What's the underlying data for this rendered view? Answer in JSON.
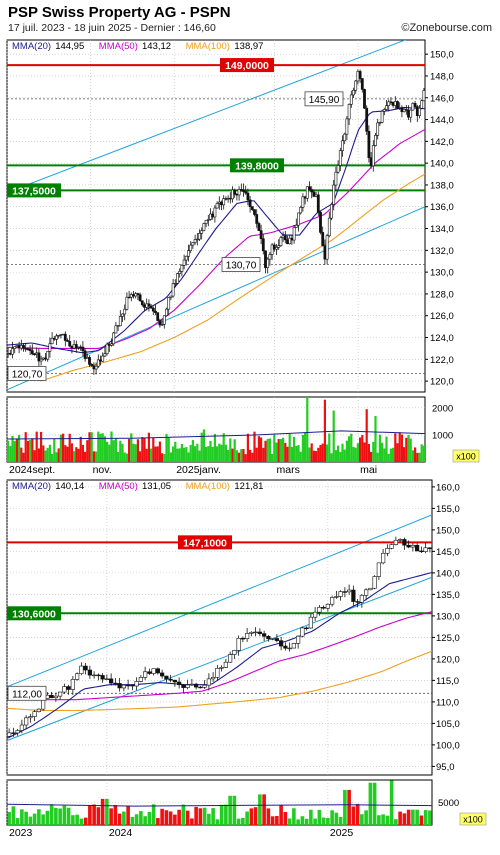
{
  "header": {
    "title": "PSP Swiss Property AG - PSPN",
    "subtitle": "17 juil. 2023 - 18 juin 2025 - Dernier : 146,60",
    "brand": "©Zonebourse.com"
  },
  "colors": {
    "candle": "#111111",
    "ma20": "#1d1d8f",
    "ma50": "#cc00cc",
    "ma100": "#f0a020",
    "channel": "#1fa4e0",
    "resistance": "#e00000",
    "support": "#008000",
    "vol_up": "#22cc22",
    "vol_down": "#ee1111",
    "vol_avg": "#1d1d8f",
    "grid": "#bbbbbb",
    "text": "#000000"
  },
  "chart_data": [
    {
      "id": "daily",
      "type": "candlestick",
      "ylim": [
        119,
        151.3
      ],
      "y_ticks": [
        "120,0",
        "122,0",
        "124,0",
        "126,0",
        "128,0",
        "130,0",
        "132,0",
        "134,0",
        "136,0",
        "138,0",
        "140,0",
        "142,0",
        "144,0",
        "146,0",
        "148,0",
        "150,0"
      ],
      "legend": [
        {
          "label": "MMA(20)",
          "value": "144,95",
          "color": "#1d1d8f"
        },
        {
          "label": "MMA(50)",
          "value": "143,12",
          "color": "#cc00cc"
        },
        {
          "label": "MMA(100)",
          "value": "138,97",
          "color": "#f0a020"
        }
      ],
      "levels": [
        {
          "value": 149.0,
          "label": "149,0000",
          "color": "#e00000",
          "style": "solid"
        },
        {
          "value": 139.8,
          "label": "139,8000",
          "color": "#008000",
          "style": "solid"
        },
        {
          "value": 137.5,
          "label": "137,5000",
          "color": "#008000",
          "style": "solid"
        },
        {
          "value": 145.9,
          "label": "145,90",
          "color": "#555555",
          "style": "dashed"
        },
        {
          "value": 130.7,
          "label": "130,70",
          "color": "#555555",
          "style": "dashed"
        },
        {
          "value": 120.7,
          "label": "120,70",
          "color": "#555555",
          "style": "dashed"
        }
      ],
      "channel": {
        "upper": [
          137.3,
          152.0
        ],
        "lower": [
          119.2,
          136.0
        ]
      },
      "x_labels": [
        "2024sept.",
        "nov.",
        "2025janv.",
        "mars",
        "mai"
      ],
      "x_label_pos": [
        0.0,
        0.2,
        0.4,
        0.64,
        0.84
      ],
      "anchors": [
        [
          0.0,
          122.5
        ],
        [
          0.03,
          123.4
        ],
        [
          0.06,
          122.6
        ],
        [
          0.09,
          121.8
        ],
        [
          0.11,
          124.0
        ],
        [
          0.13,
          124.6
        ],
        [
          0.15,
          123.5
        ],
        [
          0.17,
          123.0
        ],
        [
          0.19,
          122.2
        ],
        [
          0.21,
          121.3
        ],
        [
          0.23,
          122.6
        ],
        [
          0.25,
          123.8
        ],
        [
          0.27,
          125.8
        ],
        [
          0.29,
          127.6
        ],
        [
          0.31,
          128.0
        ],
        [
          0.33,
          126.9
        ],
        [
          0.35,
          126.4
        ],
        [
          0.37,
          125.3
        ],
        [
          0.39,
          127.8
        ],
        [
          0.41,
          130.0
        ],
        [
          0.43,
          131.5
        ],
        [
          0.45,
          133.0
        ],
        [
          0.47,
          134.2
        ],
        [
          0.49,
          135.2
        ],
        [
          0.51,
          136.4
        ],
        [
          0.53,
          137.0
        ],
        [
          0.55,
          137.4
        ],
        [
          0.57,
          137.0
        ],
        [
          0.59,
          135.5
        ],
        [
          0.61,
          132.8
        ],
        [
          0.62,
          130.2
        ],
        [
          0.63,
          132.0
        ],
        [
          0.66,
          133.0
        ],
        [
          0.68,
          132.8
        ],
        [
          0.7,
          135.8
        ],
        [
          0.72,
          137.8
        ],
        [
          0.74,
          136.8
        ],
        [
          0.75,
          134.0
        ],
        [
          0.76,
          131.0
        ],
        [
          0.77,
          135.0
        ],
        [
          0.79,
          139.5
        ],
        [
          0.81,
          143.0
        ],
        [
          0.82,
          145.5
        ],
        [
          0.83,
          147.0
        ],
        [
          0.84,
          148.6
        ],
        [
          0.85,
          147.0
        ],
        [
          0.86,
          143.0
        ],
        [
          0.87,
          139.2
        ],
        [
          0.88,
          142.5
        ],
        [
          0.9,
          145.0
        ],
        [
          0.92,
          145.8
        ],
        [
          0.94,
          145.0
        ],
        [
          0.96,
          144.5
        ],
        [
          0.97,
          145.6
        ],
        [
          0.98,
          144.5
        ],
        [
          1.0,
          146.6
        ]
      ],
      "ma20": [
        [
          0.0,
          123.3
        ],
        [
          0.06,
          123.5
        ],
        [
          0.12,
          123.0
        ],
        [
          0.18,
          122.6
        ],
        [
          0.22,
          122.8
        ],
        [
          0.28,
          124.6
        ],
        [
          0.33,
          126.5
        ],
        [
          0.38,
          127.6
        ],
        [
          0.42,
          129.5
        ],
        [
          0.46,
          131.8
        ],
        [
          0.5,
          134.0
        ],
        [
          0.55,
          136.3
        ],
        [
          0.59,
          136.6
        ],
        [
          0.62,
          135.2
        ],
        [
          0.66,
          133.4
        ],
        [
          0.7,
          133.4
        ],
        [
          0.74,
          135.4
        ],
        [
          0.78,
          136.3
        ],
        [
          0.81,
          139.5
        ],
        [
          0.84,
          143.0
        ],
        [
          0.87,
          144.7
        ],
        [
          0.91,
          144.8
        ],
        [
          0.95,
          145.1
        ],
        [
          1.0,
          145.0
        ]
      ],
      "ma50": [
        [
          0.0,
          123.1
        ],
        [
          0.08,
          123.0
        ],
        [
          0.15,
          123.0
        ],
        [
          0.22,
          123.0
        ],
        [
          0.28,
          123.8
        ],
        [
          0.34,
          124.8
        ],
        [
          0.4,
          126.5
        ],
        [
          0.46,
          128.8
        ],
        [
          0.52,
          131.3
        ],
        [
          0.58,
          133.3
        ],
        [
          0.63,
          133.6
        ],
        [
          0.7,
          134.4
        ],
        [
          0.76,
          135.3
        ],
        [
          0.82,
          137.5
        ],
        [
          0.88,
          140.0
        ],
        [
          0.94,
          141.8
        ],
        [
          1.0,
          143.1
        ]
      ],
      "ma100": [
        [
          0.08,
          120.0
        ],
        [
          0.16,
          121.0
        ],
        [
          0.24,
          121.8
        ],
        [
          0.32,
          122.7
        ],
        [
          0.4,
          124.0
        ],
        [
          0.48,
          125.6
        ],
        [
          0.56,
          127.7
        ],
        [
          0.64,
          129.7
        ],
        [
          0.72,
          131.6
        ],
        [
          0.78,
          133.0
        ],
        [
          0.84,
          134.8
        ],
        [
          0.9,
          136.6
        ],
        [
          0.96,
          138.1
        ],
        [
          1.0,
          139.0
        ]
      ],
      "volume": {
        "y_ticks": [
          "1000",
          "2000"
        ],
        "y_tick_values": [
          1000,
          2000
        ],
        "ymax": 2400,
        "multiplier_label": "x100",
        "avg": [
          [
            0.0,
            850
          ],
          [
            0.3,
            880
          ],
          [
            0.6,
            1000
          ],
          [
            0.8,
            1150
          ],
          [
            1.0,
            1050
          ]
        ],
        "spikes": [
          [
            0.72,
            2400
          ],
          [
            0.76,
            2300
          ],
          [
            0.78,
            1900
          ],
          [
            0.86,
            1950
          ],
          [
            0.88,
            1700
          ],
          [
            0.47,
            1200
          ],
          [
            0.2,
            1100
          ]
        ]
      }
    },
    {
      "id": "weekly",
      "type": "candlestick",
      "ylim": [
        93,
        161.6
      ],
      "y_ticks": [
        "95,0",
        "100,0",
        "105,0",
        "110,0",
        "115,0",
        "120,0",
        "125,0",
        "130,0",
        "135,0",
        "140,0",
        "145,0",
        "150,0",
        "155,0",
        "160,0"
      ],
      "legend": [
        {
          "label": "MMA(20)",
          "value": "140,14",
          "color": "#1d1d8f"
        },
        {
          "label": "MMA(50)",
          "value": "131,05",
          "color": "#cc00cc"
        },
        {
          "label": "MMA(100)",
          "value": "121,81",
          "color": "#f0a020"
        }
      ],
      "levels": [
        {
          "value": 147.1,
          "label": "147,1000",
          "color": "#e00000",
          "style": "solid"
        },
        {
          "value": 130.6,
          "label": "130,6000",
          "color": "#008000",
          "style": "solid"
        },
        {
          "value": 112.0,
          "label": "112,00",
          "color": "#555555",
          "style": "dashed"
        }
      ],
      "channel": {
        "upper": [
          113.5,
          153.5
        ],
        "lower": [
          101.0,
          139.0
        ]
      },
      "x_labels": [
        "2023",
        "2024",
        "2025"
      ],
      "x_label_pos": [
        0.0,
        0.235,
        0.755
      ],
      "anchors": [
        [
          0.0,
          102.0
        ],
        [
          0.03,
          104.5
        ],
        [
          0.06,
          107.5
        ],
        [
          0.09,
          110.5
        ],
        [
          0.12,
          112.0
        ],
        [
          0.15,
          114.0
        ],
        [
          0.18,
          118.5
        ],
        [
          0.2,
          116.0
        ],
        [
          0.22,
          115.5
        ],
        [
          0.25,
          114.5
        ],
        [
          0.28,
          113.5
        ],
        [
          0.31,
          115.0
        ],
        [
          0.34,
          117.5
        ],
        [
          0.37,
          115.5
        ],
        [
          0.4,
          114.0
        ],
        [
          0.43,
          113.5
        ],
        [
          0.46,
          112.5
        ],
        [
          0.48,
          116.0
        ],
        [
          0.51,
          119.0
        ],
        [
          0.54,
          123.5
        ],
        [
          0.57,
          126.5
        ],
        [
          0.6,
          125.0
        ],
        [
          0.63,
          124.0
        ],
        [
          0.66,
          122.0
        ],
        [
          0.69,
          126.0
        ],
        [
          0.72,
          130.0
        ],
        [
          0.75,
          132.5
        ],
        [
          0.78,
          135.5
        ],
        [
          0.8,
          136.5
        ],
        [
          0.82,
          133.0
        ],
        [
          0.84,
          134.5
        ],
        [
          0.86,
          138.0
        ],
        [
          0.88,
          143.0
        ],
        [
          0.9,
          146.0
        ],
        [
          0.92,
          147.5
        ],
        [
          0.94,
          145.5
        ],
        [
          0.96,
          146.0
        ],
        [
          0.98,
          145.5
        ],
        [
          1.0,
          146.6
        ]
      ],
      "ma20": [
        [
          0.0,
          101.5
        ],
        [
          0.06,
          104.5
        ],
        [
          0.12,
          108.5
        ],
        [
          0.18,
          113.0
        ],
        [
          0.24,
          114.0
        ],
        [
          0.3,
          114.0
        ],
        [
          0.36,
          114.5
        ],
        [
          0.42,
          114.0
        ],
        [
          0.48,
          114.0
        ],
        [
          0.54,
          118.0
        ],
        [
          0.6,
          122.5
        ],
        [
          0.66,
          124.2
        ],
        [
          0.72,
          126.5
        ],
        [
          0.78,
          130.5
        ],
        [
          0.84,
          133.5
        ],
        [
          0.9,
          137.5
        ],
        [
          1.0,
          140.1
        ]
      ],
      "ma50": [
        [
          0.0,
          111.0
        ],
        [
          0.08,
          110.5
        ],
        [
          0.16,
          110.5
        ],
        [
          0.24,
          111.0
        ],
        [
          0.32,
          111.5
        ],
        [
          0.4,
          112.0
        ],
        [
          0.46,
          112.5
        ],
        [
          0.52,
          114.5
        ],
        [
          0.58,
          117.0
        ],
        [
          0.64,
          119.5
        ],
        [
          0.7,
          121.0
        ],
        [
          0.76,
          123.0
        ],
        [
          0.82,
          125.2
        ],
        [
          0.88,
          127.5
        ],
        [
          0.94,
          129.5
        ],
        [
          1.0,
          131.0
        ]
      ],
      "ma100": [
        [
          0.0,
          108.5
        ],
        [
          0.08,
          108.0
        ],
        [
          0.16,
          108.0
        ],
        [
          0.24,
          108.2
        ],
        [
          0.32,
          108.5
        ],
        [
          0.4,
          108.8
        ],
        [
          0.48,
          109.5
        ],
        [
          0.56,
          110.2
        ],
        [
          0.64,
          111.0
        ],
        [
          0.72,
          112.5
        ],
        [
          0.8,
          114.5
        ],
        [
          0.88,
          117.0
        ],
        [
          0.94,
          119.5
        ],
        [
          1.0,
          121.8
        ]
      ],
      "volume": {
        "y_ticks": [
          "5000"
        ],
        "y_tick_values": [
          5000
        ],
        "ymax": 10000,
        "multiplier_label": "x100",
        "avg": [
          [
            0.0,
            4600
          ],
          [
            0.3,
            4200
          ],
          [
            0.6,
            4400
          ],
          [
            0.8,
            4500
          ],
          [
            1.0,
            4300
          ]
        ],
        "spikes": [
          [
            0.86,
            9400
          ],
          [
            0.905,
            9900
          ],
          [
            0.8,
            7800
          ],
          [
            0.6,
            6800
          ],
          [
            0.23,
            5800
          ],
          [
            0.53,
            6500
          ]
        ]
      }
    }
  ]
}
